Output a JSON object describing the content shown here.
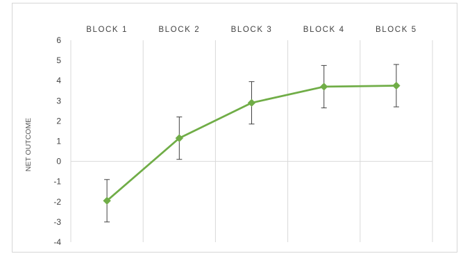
{
  "chart_data": {
    "type": "line",
    "title": "",
    "xlabel": "",
    "ylabel": "NET OUTCOME",
    "categories": [
      "BLOCK 1",
      "BLOCK 2",
      "BLOCK 3",
      "BLOCK 4",
      "BLOCK 5"
    ],
    "series": [
      {
        "values": [
          -1.95,
          1.15,
          2.9,
          3.7,
          3.75
        ],
        "error": [
          1.05,
          1.05,
          1.05,
          1.05,
          1.05
        ],
        "color": "#70ad47",
        "marker": "diamond"
      }
    ],
    "ylim": [
      -4,
      6
    ],
    "yticks": [
      "6",
      "5",
      "4",
      "3",
      "2",
      "1",
      "0",
      "-1",
      "-2",
      "-3",
      "-4"
    ],
    "grid": "vertical category separators",
    "category_axis_position": "top",
    "legend": "none",
    "gridline_color": "#d9d9d9",
    "errorbar_color": "#404040"
  }
}
